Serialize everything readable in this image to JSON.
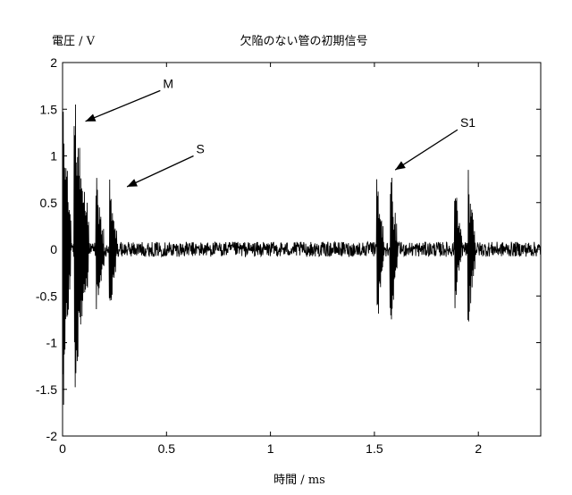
{
  "chart_data": {
    "type": "line",
    "title": "欠陥のない管の初期信号",
    "ylabel": "電圧 / V",
    "xlabel": "時間 / ms",
    "xlim": [
      0,
      2.3
    ],
    "ylim": [
      -2,
      2
    ],
    "x_ticks": [
      0,
      0.5,
      1,
      1.5,
      2
    ],
    "x_tick_labels": [
      "0",
      "0.5",
      "1",
      "1.5",
      "2"
    ],
    "y_ticks": [
      2,
      1.5,
      1,
      0.5,
      0,
      -0.5,
      -1,
      -1.5,
      -2
    ],
    "y_tick_labels": [
      "2",
      "1.5",
      "1",
      "0.5",
      "0",
      "-0.5",
      "-1",
      "-1.5",
      "-2"
    ],
    "grid": false,
    "noise_amplitude": 0.08,
    "series": [
      {
        "color": "#000000",
        "bursts": [
          {
            "t": 0.0,
            "duration": 0.04,
            "amplitude": 2.0
          },
          {
            "t": 0.055,
            "duration": 0.07,
            "amplitude": 1.9
          },
          {
            "t": 0.16,
            "duration": 0.04,
            "amplitude": 0.88
          },
          {
            "t": 0.225,
            "duration": 0.035,
            "amplitude": 0.9
          },
          {
            "t": 1.51,
            "duration": 0.035,
            "amplitude": 1.0
          },
          {
            "t": 1.575,
            "duration": 0.035,
            "amplitude": 1.08
          },
          {
            "t": 1.885,
            "duration": 0.035,
            "amplitude": 0.85
          },
          {
            "t": 1.95,
            "duration": 0.035,
            "amplitude": 0.92
          }
        ]
      }
    ],
    "annotations": [
      {
        "text": "M",
        "from": [
          0.47,
          1.7
        ],
        "to": [
          0.11,
          1.37
        ]
      },
      {
        "text": "S",
        "from": [
          0.63,
          1.0
        ],
        "to": [
          0.31,
          0.67
        ]
      },
      {
        "text": "S1",
        "from": [
          1.9,
          1.28
        ],
        "to": [
          1.6,
          0.85
        ]
      }
    ]
  }
}
